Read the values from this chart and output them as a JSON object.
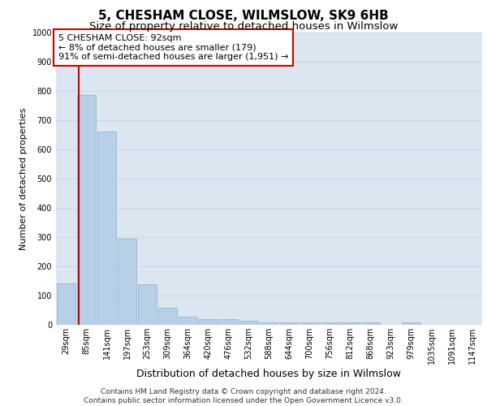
{
  "title": "5, CHESHAM CLOSE, WILMSLOW, SK9 6HB",
  "subtitle": "Size of property relative to detached houses in Wilmslow",
  "xlabel": "Distribution of detached houses by size in Wilmslow",
  "ylabel": "Number of detached properties",
  "bin_labels": [
    "29sqm",
    "85sqm",
    "141sqm",
    "197sqm",
    "253sqm",
    "309sqm",
    "364sqm",
    "420sqm",
    "476sqm",
    "532sqm",
    "588sqm",
    "644sqm",
    "700sqm",
    "756sqm",
    "812sqm",
    "868sqm",
    "923sqm",
    "979sqm",
    "1035sqm",
    "1091sqm",
    "1147sqm"
  ],
  "bar_heights": [
    143,
    785,
    660,
    295,
    138,
    57,
    29,
    20,
    20,
    14,
    9,
    9,
    9,
    9,
    9,
    9,
    0,
    9,
    0,
    0,
    0
  ],
  "bar_color": "#b8cfe8",
  "bar_edge_color": "#8aafd0",
  "annotation_box_text": "5 CHESHAM CLOSE: 92sqm\n← 8% of detached houses are smaller (179)\n91% of semi-detached houses are larger (1,951) →",
  "annotation_box_color": "#ffffff",
  "annotation_box_edge_color": "#cc0000",
  "vline_color": "#cc0000",
  "ylim": [
    0,
    1000
  ],
  "yticks": [
    0,
    100,
    200,
    300,
    400,
    500,
    600,
    700,
    800,
    900,
    1000
  ],
  "grid_color": "#c8d4e8",
  "background_color": "#dce6f0",
  "footer_text": "Contains HM Land Registry data © Crown copyright and database right 2024.\nContains public sector information licensed under the Open Government Licence v3.0.",
  "title_fontsize": 11,
  "subtitle_fontsize": 9.5,
  "xlabel_fontsize": 9,
  "ylabel_fontsize": 8,
  "tick_fontsize": 7,
  "annotation_fontsize": 8,
  "footer_fontsize": 6.5
}
